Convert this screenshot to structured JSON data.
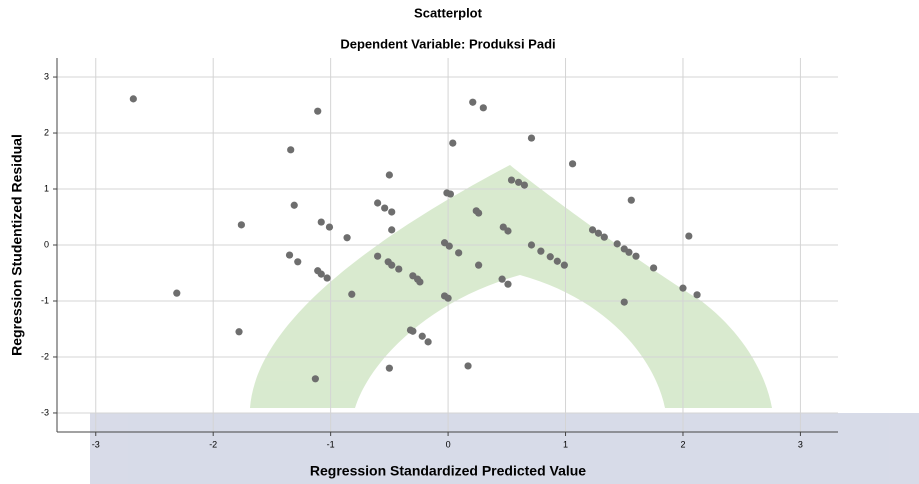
{
  "chart_data": {
    "type": "scatter",
    "title": "Scatterplot",
    "subtitle": "Dependent Variable: Produksi Padi",
    "x_label": "Regression Standardized Predicted Value",
    "y_label": "Regression Studentized Residual",
    "color": "#6e6e6e",
    "grid": true,
    "xlim": [
      -3.33,
      3.32
    ],
    "ylim": [
      -3.34,
      3.34
    ],
    "xticks": [
      -3,
      -2,
      -1,
      0,
      1,
      2,
      3
    ],
    "yticks": [
      -3,
      -2,
      -1,
      0,
      1,
      2,
      3
    ],
    "x": [
      -2.68,
      -2.31,
      -1.76,
      -1.78,
      -1.35,
      -1.28,
      -1.34,
      -1.31,
      -1.11,
      -1.11,
      -1.08,
      -1.03,
      -1.08,
      -1.01,
      -0.86,
      -0.82,
      -1.13,
      -0.6,
      -0.54,
      -0.48,
      -0.6,
      -0.51,
      -0.48,
      -0.42,
      -0.5,
      -0.5,
      -0.48,
      -0.32,
      -0.3,
      -0.3,
      -0.26,
      -0.24,
      -0.22,
      -0.17,
      -0.03,
      0.01,
      -0.01,
      0.02,
      -0.03,
      0,
      0.04,
      0.09,
      0.17,
      0.21,
      0.3,
      0.24,
      0.26,
      0.26,
      0.46,
      0.51,
      0.47,
      0.51,
      0.54,
      0.6,
      0.65,
      0.71,
      0.71,
      0.79,
      0.87,
      0.93,
      0.99,
      1.06,
      1.23,
      1.28,
      1.33,
      1.44,
      1.5,
      1.54,
      1.6,
      1.5,
      1.56,
      1.75,
      2.0,
      2.05,
      2.12
    ],
    "y": [
      2.61,
      -0.86,
      0.36,
      -1.55,
      -0.18,
      -0.3,
      1.7,
      0.71,
      2.39,
      -0.46,
      -0.52,
      -0.59,
      0.41,
      0.32,
      0.13,
      -0.88,
      -2.39,
      0.75,
      0.66,
      0.59,
      -0.2,
      -0.3,
      -0.36,
      -0.43,
      -2.2,
      1.25,
      0.27,
      -1.52,
      -1.54,
      -0.55,
      -0.61,
      -0.66,
      -1.63,
      -1.73,
      0.04,
      -0.02,
      0.93,
      0.91,
      -0.91,
      -0.95,
      1.82,
      -0.14,
      -2.16,
      2.55,
      2.45,
      0.61,
      0.57,
      -0.36,
      -0.61,
      -0.7,
      0.32,
      0.25,
      1.16,
      1.12,
      1.07,
      1.91,
      0,
      -0.11,
      -0.21,
      -0.29,
      -0.36,
      1.45,
      0.27,
      0.21,
      0.14,
      0.02,
      -0.07,
      -0.13,
      -0.2,
      -1.02,
      0.8,
      -0.41,
      -0.77,
      0.16,
      -0.89
    ]
  }
}
